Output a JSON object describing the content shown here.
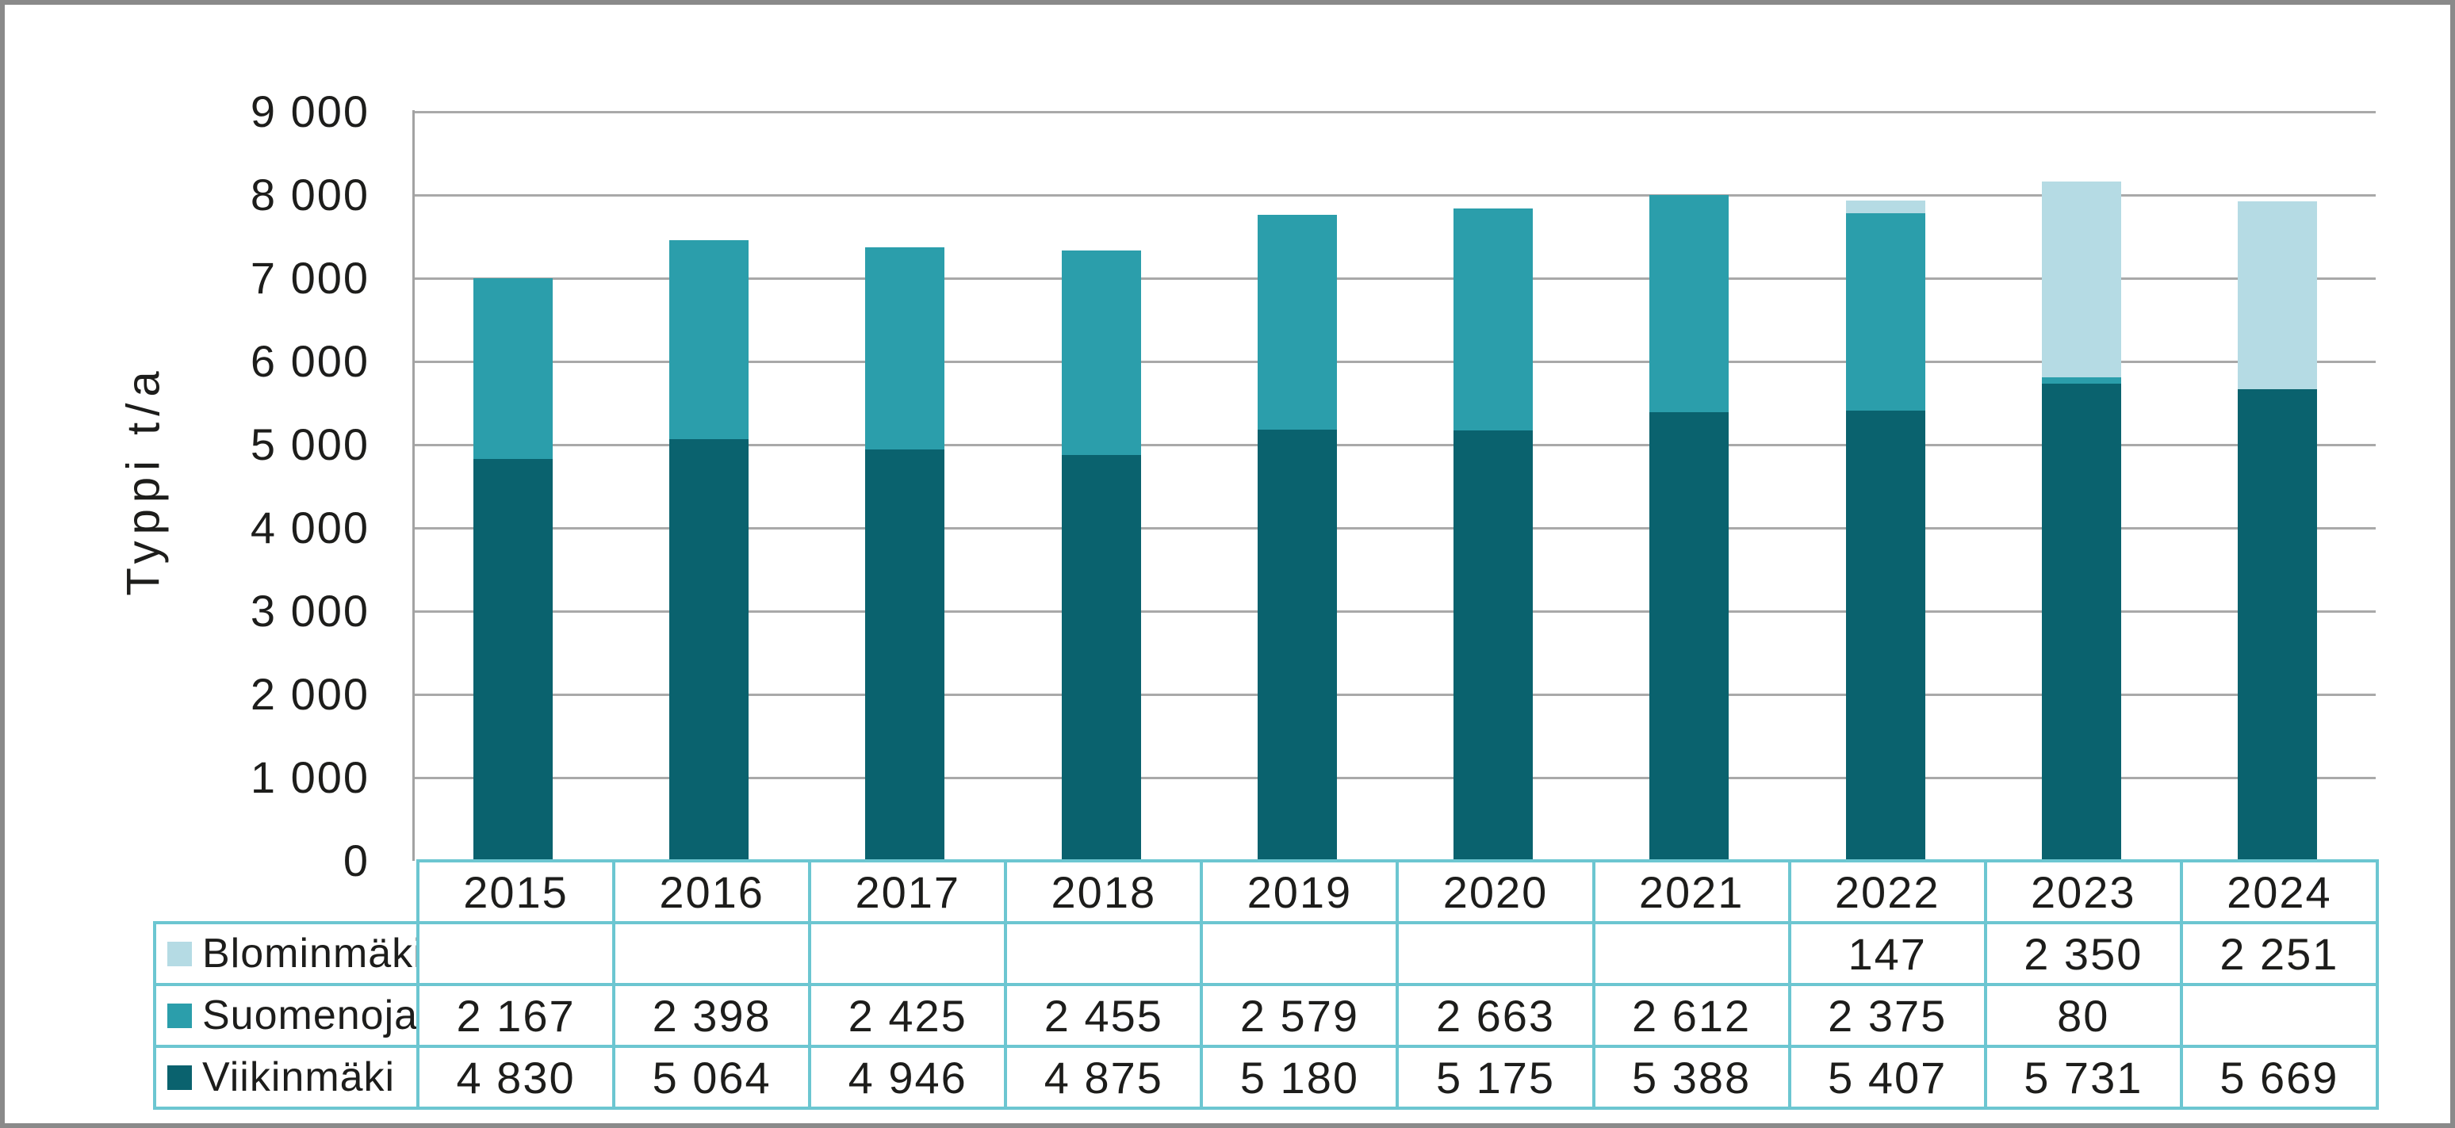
{
  "chart_data": {
    "type": "bar",
    "stacked": true,
    "title": "",
    "ylabel": "Typpi t/a",
    "ylim": [
      0,
      9000
    ],
    "ytick_step": 1000,
    "ytick_labels": [
      "0",
      "1 000",
      "2 000",
      "3 000",
      "4 000",
      "5 000",
      "6 000",
      "7 000",
      "8 000",
      "9 000"
    ],
    "grid": true,
    "legend_position": "table-left",
    "categories": [
      "2015",
      "2016",
      "2017",
      "2018",
      "2019",
      "2020",
      "2021",
      "2022",
      "2023",
      "2024"
    ],
    "series": [
      {
        "name": "Blominmäki",
        "color": "#b5dbe4",
        "values": [
          null,
          null,
          null,
          null,
          null,
          null,
          null,
          147,
          2350,
          2251
        ]
      },
      {
        "name": "Suomenoja",
        "color": "#2b9eab",
        "values": [
          2167,
          2398,
          2425,
          2455,
          2579,
          2663,
          2612,
          2375,
          80,
          null
        ]
      },
      {
        "name": "Viikinmäki",
        "color": "#0a626e",
        "values": [
          4830,
          5064,
          4946,
          4875,
          5180,
          5175,
          5388,
          5407,
          5731,
          5669
        ]
      }
    ]
  },
  "table": {
    "header_years": [
      "2015",
      "2016",
      "2017",
      "2018",
      "2019",
      "2020",
      "2021",
      "2022",
      "2023",
      "2024"
    ],
    "rows": [
      {
        "label": "Blominmäki",
        "swatch_color": "#b5dbe4",
        "values": [
          "",
          "",
          "",
          "",
          "",
          "",
          "",
          "147",
          "2 350",
          "2 251"
        ]
      },
      {
        "label": "Suomenoja",
        "swatch_color": "#2b9eab",
        "values": [
          "2 167",
          "2 398",
          "2 425",
          "2 455",
          "2 579",
          "2 663",
          "2 612",
          "2 375",
          "80",
          ""
        ]
      },
      {
        "label": "Viikinmäki",
        "swatch_color": "#0a626e",
        "values": [
          "4 830",
          "5 064",
          "4 946",
          "4 875",
          "5 180",
          "5 175",
          "5 388",
          "5 407",
          "5 731",
          "5 669"
        ]
      }
    ]
  },
  "colors": {
    "frame_border": "#8a8a8a",
    "gridline": "#a9a9a9",
    "axis_line": "#a2a2a2",
    "table_border": "#6cc6d1",
    "text": "#1d1d1b",
    "background": "#ffffff"
  }
}
